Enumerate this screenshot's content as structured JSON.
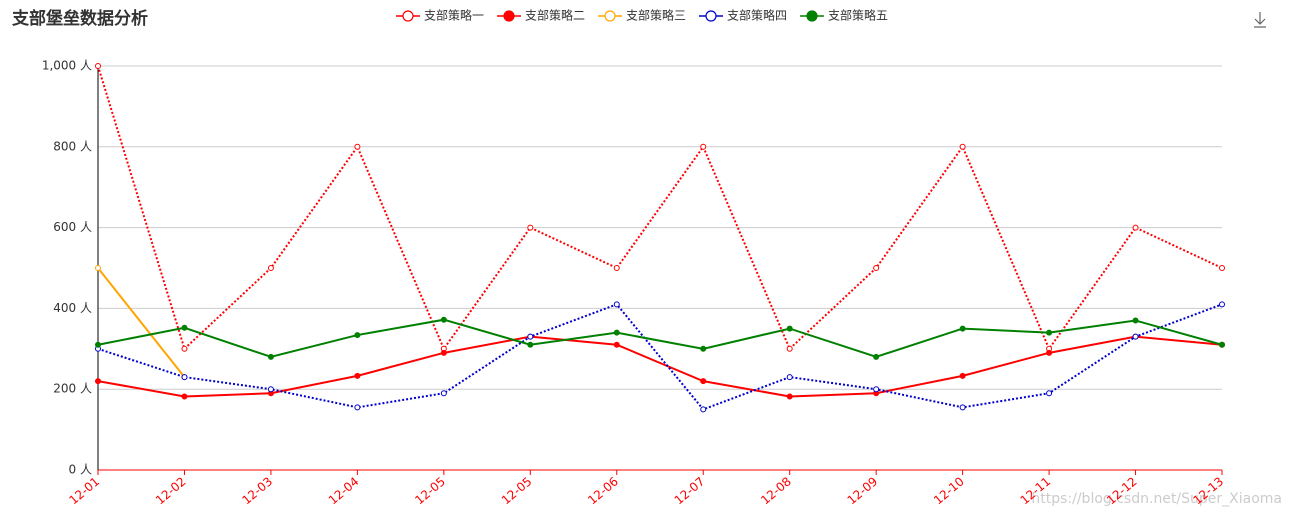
{
  "chart_data": {
    "type": "line",
    "title": "支部堡垒数据分析",
    "watermark": "https://blog.csdn.net/Super_Xiaoma",
    "categories": [
      "12-01",
      "12-02",
      "12-03",
      "12-04",
      "12-05",
      "12-05",
      "12-06",
      "12-07",
      "12-08",
      "12-09",
      "12-10",
      "12-11",
      "12-12",
      "12-13"
    ],
    "series": [
      {
        "name": "支部策略一",
        "color": "#ff0000",
        "dotted": true,
        "filled": false,
        "values": [
          1000,
          300,
          500,
          800,
          300,
          600,
          500,
          800,
          300,
          500,
          800,
          300,
          600,
          500
        ]
      },
      {
        "name": "支部策略二",
        "color": "#ff0000",
        "dotted": false,
        "filled": true,
        "values": [
          220,
          182,
          190,
          233,
          290,
          330,
          310,
          220,
          182,
          190,
          233,
          290,
          330,
          310
        ]
      },
      {
        "name": "支部策略三",
        "color": "#ffa500",
        "dotted": false,
        "filled": false,
        "values": [
          500,
          230,
          null,
          null,
          null,
          null,
          null,
          null,
          null,
          null,
          null,
          null,
          null,
          null
        ]
      },
      {
        "name": "支部策略四",
        "color": "#0000cd",
        "dotted": true,
        "filled": false,
        "values": [
          300,
          230,
          200,
          155,
          190,
          330,
          410,
          150,
          230,
          200,
          155,
          190,
          330,
          410
        ]
      },
      {
        "name": "支部策略五",
        "color": "#008000",
        "dotted": false,
        "filled": true,
        "values": [
          310,
          352,
          280,
          334,
          372,
          310,
          340,
          300,
          350,
          280,
          350,
          340,
          370,
          310
        ]
      }
    ],
    "ylim": [
      0,
      1000
    ],
    "yticks": [
      {
        "value": 0,
        "label": "0 人"
      },
      {
        "value": 200,
        "label": "200 人"
      },
      {
        "value": 400,
        "label": "400 人"
      },
      {
        "value": 600,
        "label": "600 人"
      },
      {
        "value": 800,
        "label": "800 人"
      },
      {
        "value": 1000,
        "label": "1,000 人"
      }
    ],
    "grid": true,
    "x_axis_color": "#ff0000",
    "legend": "top"
  }
}
